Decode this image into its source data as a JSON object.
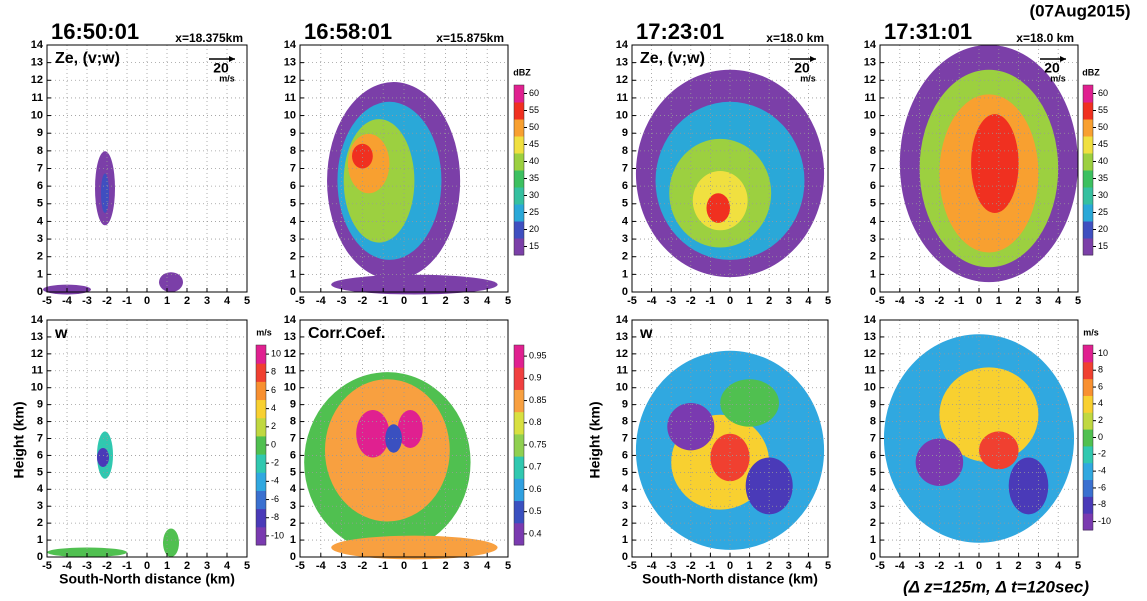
{
  "date": "(07Aug2015)",
  "footnote": "(Δ z=125m, Δ t=120sec)",
  "y_label": "Height (km)",
  "x_label": "South-North distance (km)",
  "chart_data": [
    {
      "type": "heatmap",
      "title": "16:50:01",
      "subtitle": "x=18.375km",
      "label": "Ze, (v;w)",
      "vector_scale": 20,
      "vector_unit": "m/s",
      "xlim": [
        -5,
        5
      ],
      "ylim": [
        0,
        14
      ],
      "xticks": [
        -5,
        -4,
        -3,
        -2,
        -1,
        0,
        1,
        2,
        3,
        4,
        5
      ],
      "yticks": [
        0,
        1,
        2,
        3,
        4,
        5,
        6,
        7,
        8,
        9,
        10,
        11,
        12,
        13,
        14
      ],
      "grid": true
    },
    {
      "type": "heatmap",
      "title": "16:58:01",
      "subtitle": "x=15.875km",
      "xlim": [
        -5,
        5
      ],
      "ylim": [
        0,
        14
      ],
      "xticks": [
        -5,
        -4,
        -3,
        -2,
        -1,
        0,
        1,
        2,
        3,
        4,
        5
      ],
      "yticks": [
        0,
        1,
        2,
        3,
        4,
        5,
        6,
        7,
        8,
        9,
        10,
        11,
        12,
        13,
        14
      ],
      "grid": true,
      "colorbar": {
        "unit": "dBZ",
        "ticks": [
          15,
          20,
          25,
          30,
          35,
          40,
          45,
          50,
          55,
          60
        ],
        "colors": [
          "#7b3fa8",
          "#3f4fc0",
          "#2aa8d8",
          "#35c0a0",
          "#3cc060",
          "#9cd040",
          "#f0e040",
          "#f8a030",
          "#f03020",
          "#e02090"
        ]
      }
    },
    {
      "type": "heatmap",
      "title": "17:23:01",
      "subtitle": "x=18.0 km",
      "label": "Ze, (v;w)",
      "vector_scale": 20,
      "vector_unit": "m/s",
      "xlim": [
        -5,
        5
      ],
      "ylim": [
        0,
        14
      ],
      "xticks": [
        -5,
        -4,
        -3,
        -2,
        -1,
        0,
        1,
        2,
        3,
        4,
        5
      ],
      "yticks": [
        0,
        1,
        2,
        3,
        4,
        5,
        6,
        7,
        8,
        9,
        10,
        11,
        12,
        13,
        14
      ],
      "grid": true
    },
    {
      "type": "heatmap",
      "title": "17:31:01",
      "subtitle": "x=18.0 km",
      "vector_scale": 20,
      "vector_unit": "m/s",
      "xlim": [
        -5,
        5
      ],
      "ylim": [
        0,
        14
      ],
      "xticks": [
        -5,
        -4,
        -3,
        -2,
        -1,
        0,
        1,
        2,
        3,
        4,
        5
      ],
      "yticks": [
        0,
        1,
        2,
        3,
        4,
        5,
        6,
        7,
        8,
        9,
        10,
        11,
        12,
        13,
        14
      ],
      "grid": true,
      "colorbar": {
        "unit": "dBZ",
        "ticks": [
          15,
          20,
          25,
          30,
          35,
          40,
          45,
          50,
          55,
          60
        ],
        "colors": [
          "#7b3fa8",
          "#3f4fc0",
          "#2aa8d8",
          "#35c0a0",
          "#3cc060",
          "#9cd040",
          "#f0e040",
          "#f8a030",
          "#f03020",
          "#e02090"
        ]
      }
    },
    {
      "type": "heatmap",
      "label": "w",
      "xlim": [
        -5,
        5
      ],
      "ylim": [
        0,
        14
      ],
      "xticks": [
        -5,
        -4,
        -3,
        -2,
        -1,
        0,
        1,
        2,
        3,
        4,
        5
      ],
      "yticks": [
        0,
        1,
        2,
        3,
        4,
        5,
        6,
        7,
        8,
        9,
        10,
        11,
        12,
        13,
        14
      ],
      "grid": true,
      "colorbar": {
        "unit": "m/s",
        "ticks": [
          -10,
          -8,
          -6,
          -4,
          -2,
          0,
          2,
          4,
          6,
          8,
          10
        ],
        "colors": [
          "#7a3ab0",
          "#4a3ab8",
          "#3a70d0",
          "#30a8e0",
          "#30c8b0",
          "#50c050",
          "#c0d840",
          "#f8d030",
          "#f89030",
          "#f04030",
          "#e02090"
        ]
      }
    },
    {
      "type": "heatmap",
      "label": "Corr.Coef.",
      "xlim": [
        -5,
        5
      ],
      "ylim": [
        0,
        14
      ],
      "xticks": [
        -5,
        -4,
        -3,
        -2,
        -1,
        0,
        1,
        2,
        3,
        4,
        5
      ],
      "yticks": [
        0,
        1,
        2,
        3,
        4,
        5,
        6,
        7,
        8,
        9,
        10,
        11,
        12,
        13,
        14
      ],
      "grid": true,
      "colorbar": {
        "ticks": [
          0.4,
          0.5,
          0.6,
          0.7,
          0.75,
          0.8,
          0.85,
          0.9,
          0.95
        ],
        "colors": [
          "#7a3ab0",
          "#3a50c0",
          "#30a0e0",
          "#30c8b0",
          "#90d050",
          "#d8e040",
          "#f8a040",
          "#f04040",
          "#e02090"
        ]
      }
    },
    {
      "type": "heatmap",
      "label": "w",
      "xlim": [
        -5,
        5
      ],
      "ylim": [
        0,
        14
      ],
      "xticks": [
        -5,
        -4,
        -3,
        -2,
        -1,
        0,
        1,
        2,
        3,
        4,
        5
      ],
      "yticks": [
        0,
        1,
        2,
        3,
        4,
        5,
        6,
        7,
        8,
        9,
        10,
        11,
        12,
        13,
        14
      ],
      "grid": true
    },
    {
      "type": "heatmap",
      "xlim": [
        -5,
        5
      ],
      "ylim": [
        0,
        14
      ],
      "xticks": [
        -5,
        -4,
        -3,
        -2,
        -1,
        0,
        1,
        2,
        3,
        4,
        5
      ],
      "yticks": [
        0,
        1,
        2,
        3,
        4,
        5,
        6,
        7,
        8,
        9,
        10,
        11,
        12,
        13,
        14
      ],
      "grid": true,
      "colorbar": {
        "unit": "m/s",
        "ticks": [
          -10,
          -8,
          -6,
          -4,
          -2,
          0,
          2,
          4,
          6,
          8,
          10
        ],
        "colors": [
          "#7a3ab0",
          "#4a3ab8",
          "#3a70d0",
          "#30a8e0",
          "#30c8b0",
          "#50c050",
          "#c0d840",
          "#f8d030",
          "#f89030",
          "#f04030",
          "#e02090"
        ]
      }
    }
  ]
}
